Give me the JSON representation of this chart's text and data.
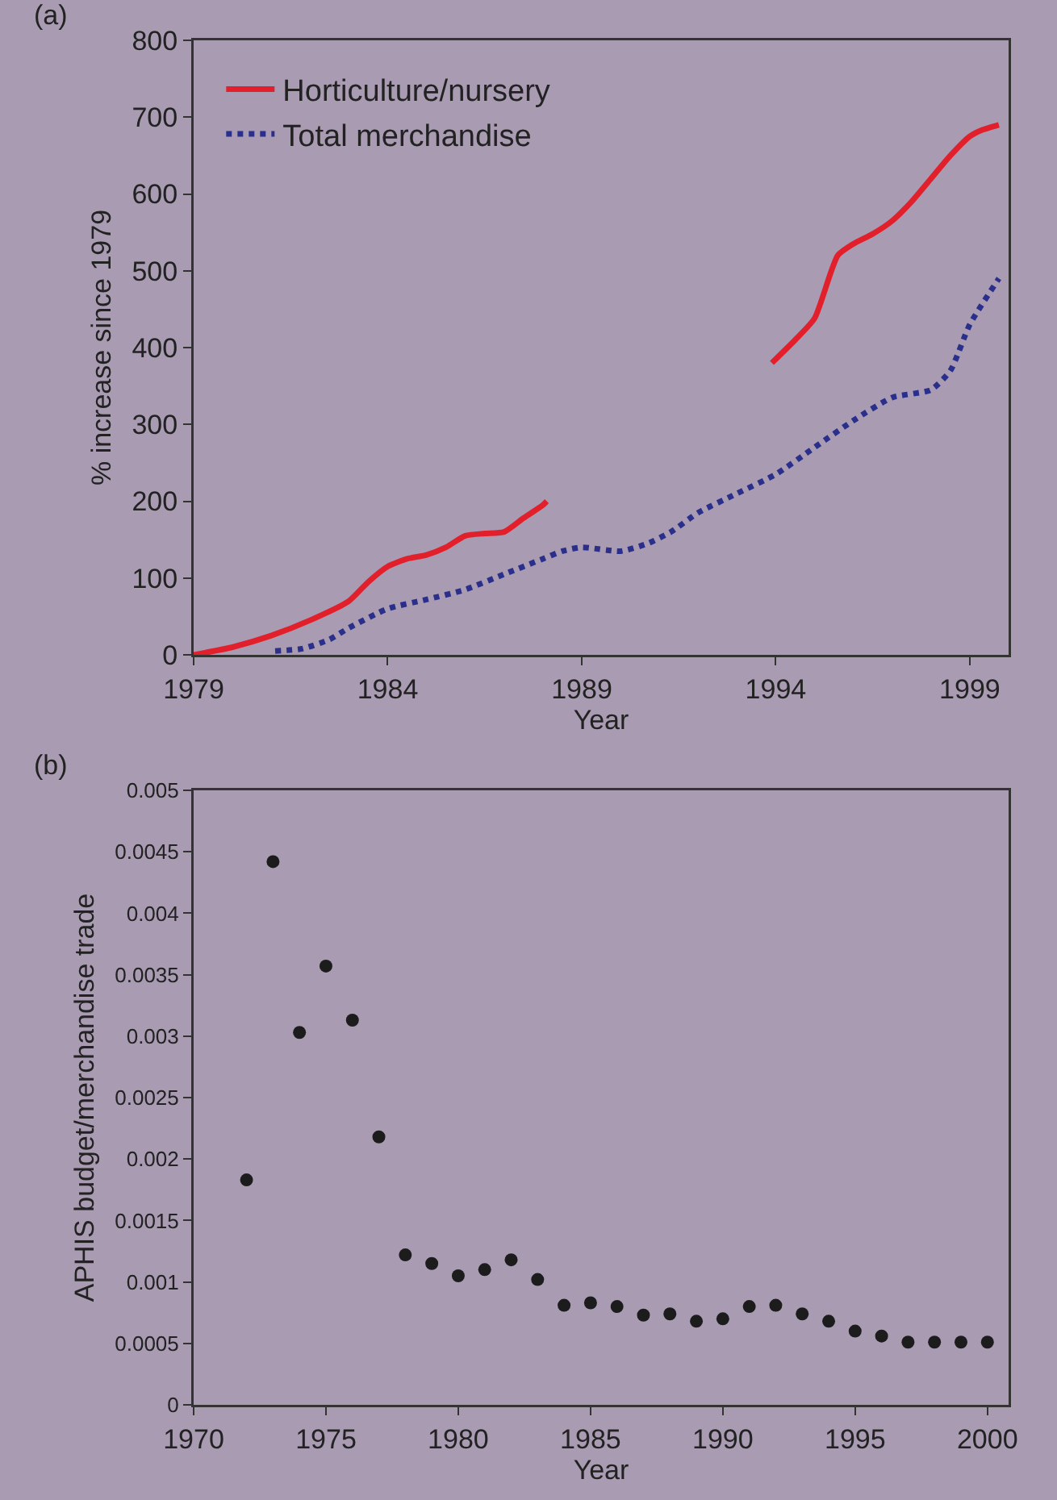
{
  "chart_data": [
    {
      "type": "line",
      "annotations": [
        "(a)"
      ],
      "xlabel": "Year",
      "ylabel": "% increase since 1979",
      "xlim": [
        1979,
        2000
      ],
      "xticks": [
        1979,
        1984,
        1989,
        1994,
        1999
      ],
      "ylim": [
        0,
        800
      ],
      "yticks": [
        0,
        100,
        200,
        300,
        400,
        500,
        600,
        700,
        800
      ],
      "grid": false,
      "legend": "top left",
      "marker": "none",
      "series": [
        {
          "name": "Horticulture/nursery",
          "color": "#e2202c",
          "line_style": "solid",
          "x": [
            1979,
            1980,
            1981,
            1982,
            1983,
            1983.5,
            1984,
            1984.5,
            1985,
            1985.5,
            1986,
            1986.5,
            1987,
            1987.5,
            1988,
            1988.1,
            1991,
            1993.9,
            1994.5,
            1995,
            1995.6,
            1996,
            1996.5,
            1997,
            1997.5,
            1998,
            1998.5,
            1999,
            1999.3,
            1999.75
          ],
          "values": [
            0,
            10,
            25,
            45,
            70,
            95,
            115,
            125,
            130,
            140,
            155,
            158,
            160,
            178,
            195,
            200,
            null,
            380,
            410,
            438,
            520,
            535,
            548,
            565,
            590,
            620,
            650,
            675,
            683,
            690
          ]
        },
        {
          "name": "Total merchandise",
          "color": "#2b2f8c",
          "line_style": "dotted",
          "x": [
            1981.1,
            1981.8,
            1982.5,
            1983,
            1984,
            1985,
            1986,
            1987,
            1988,
            1988.5,
            1989,
            1990,
            1990.7,
            1991.3,
            1992,
            1993,
            1994,
            1995,
            1996,
            1997,
            1998,
            1998.5,
            1999,
            1999.75
          ],
          "values": [
            5,
            8,
            20,
            35,
            60,
            72,
            85,
            105,
            125,
            135,
            140,
            135,
            145,
            160,
            185,
            210,
            235,
            270,
            305,
            335,
            345,
            370,
            430,
            490
          ]
        }
      ]
    },
    {
      "type": "scatter",
      "annotations": [
        "(b)"
      ],
      "xlabel": "Year",
      "ylabel": "APHIS budget/merchandise trade",
      "xlim": [
        1970,
        2000.8
      ],
      "xticks": [
        1970,
        1975,
        1980,
        1985,
        1990,
        1995,
        2000
      ],
      "ylim": [
        0,
        0.005
      ],
      "yticks": [
        0,
        0.0005,
        0.001,
        0.0015,
        0.002,
        0.0025,
        0.003,
        0.0035,
        0.004,
        0.0045,
        0.005
      ],
      "grid": false,
      "legend": false,
      "marker": "circle",
      "x": [
        1972,
        1973,
        1974,
        1975,
        1976,
        1977,
        1978,
        1979,
        1980,
        1981,
        1982,
        1983,
        1984,
        1985,
        1986,
        1987,
        1988,
        1989,
        1990,
        1991,
        1992,
        1993,
        1994,
        1995,
        1996,
        1997,
        1998,
        1999,
        2000
      ],
      "series": [
        {
          "color": "#1c1c1c",
          "values": [
            0.00183,
            0.00442,
            0.00303,
            0.00357,
            0.00313,
            0.00218,
            0.00122,
            0.00115,
            0.00105,
            0.0011,
            0.00118,
            0.00102,
            0.00081,
            0.00083,
            0.0008,
            0.00073,
            0.00074,
            0.00068,
            0.0007,
            0.0008,
            0.00081,
            0.00074,
            0.00068,
            0.0006,
            0.00056,
            0.00051,
            0.00051,
            0.00051,
            0.00051
          ]
        }
      ]
    }
  ]
}
